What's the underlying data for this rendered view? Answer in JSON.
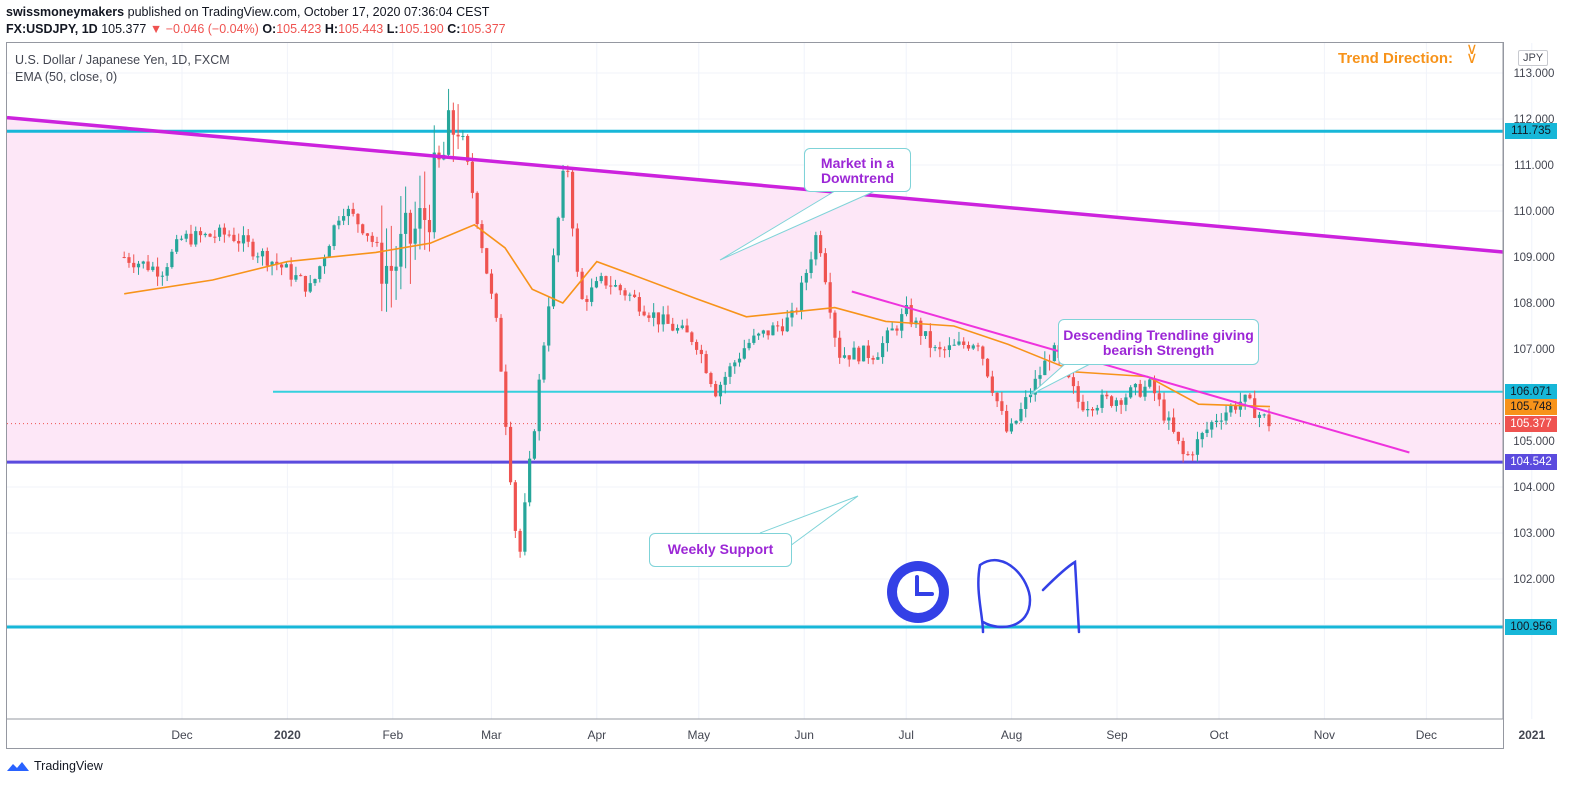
{
  "header": {
    "author": "swissmoneymakers",
    "published_text": "published on TradingView.com, October 17, 2020 07:36:04 CEST",
    "symbol": "FX:USDJPY, 1D",
    "last": "105.377",
    "change": "▼ −0.046 (−0.04%)",
    "o_label": "O:",
    "o_value": "105.423",
    "h_label": "H:",
    "h_value": "105.443",
    "l_label": "L:",
    "l_value": "105.190",
    "c_label": "C:",
    "c_value": "105.377"
  },
  "legend": {
    "title": "U.S. Dollar / Japanese Yen, 1D, FXCM",
    "indicator": "EMA (50, close, 0)"
  },
  "trend_direction": "Trend Direction:",
  "currency": "JPY",
  "callouts": {
    "downtrend": "Market in a Downtrend",
    "trendline": "Descending Trendline giving bearish Strength",
    "support": "Weekly Support"
  },
  "handwriting": "D1",
  "price_tags": {
    "top_line": "111.735",
    "mid_line": "106.071",
    "ema": "105.748",
    "last": "105.377",
    "support": "104.542",
    "bottom_line": "100.956"
  },
  "footer": {
    "brand": "TradingView"
  },
  "colors": {
    "up": "#26a69a",
    "down": "#ef5350",
    "ema": "#f7931a",
    "channel_fill": "#fde7f7",
    "cyan": "#17b7d8",
    "magenta": "#cc22dd",
    "support": "#5b4bde",
    "clock": "#3340e6"
  },
  "chart_data": {
    "type": "candlestick",
    "title": "U.S. Dollar / Japanese Yen, 1D, FXCM",
    "ylim": [
      100.3,
      113.3
    ],
    "y_ticks": [
      "101.000",
      "102.000",
      "103.000",
      "104.000",
      "105.000",
      "106.000",
      "107.000",
      "108.000",
      "109.000",
      "110.000",
      "111.000",
      "112.000",
      "113.000"
    ],
    "x_ticks": [
      "Dec",
      "2020",
      "Feb",
      "Mar",
      "Apr",
      "May",
      "Jun",
      "Jul",
      "Aug",
      "Sep",
      "Oct",
      "Nov",
      "Dec",
      "2021"
    ],
    "close_anchors": [
      {
        "t": "2019-11-14",
        "v": 109.0
      },
      {
        "t": "2019-11-25",
        "v": 108.7
      },
      {
        "t": "2019-12-01",
        "v": 109.4
      },
      {
        "t": "2019-12-15",
        "v": 109.5
      },
      {
        "t": "2019-12-30",
        "v": 108.8
      },
      {
        "t": "2020-01-08",
        "v": 108.3
      },
      {
        "t": "2020-01-17",
        "v": 110.1
      },
      {
        "t": "2020-01-24",
        "v": 109.6
      },
      {
        "t": "2020-01-31",
        "v": 108.7
      },
      {
        "t": "2020-02-10",
        "v": 109.8
      },
      {
        "t": "2020-02-20",
        "v": 112.1
      },
      {
        "t": "2020-02-25",
        "v": 110.2
      },
      {
        "t": "2020-03-03",
        "v": 107.3
      },
      {
        "t": "2020-03-09",
        "v": 102.3
      },
      {
        "t": "2020-03-12",
        "v": 104.3
      },
      {
        "t": "2020-03-17",
        "v": 107.5
      },
      {
        "t": "2020-03-23",
        "v": 111.3
      },
      {
        "t": "2020-03-27",
        "v": 108.0
      },
      {
        "t": "2020-04-03",
        "v": 108.5
      },
      {
        "t": "2020-04-10",
        "v": 108.2
      },
      {
        "t": "2020-04-20",
        "v": 107.6
      },
      {
        "t": "2020-04-30",
        "v": 107.2
      },
      {
        "t": "2020-05-06",
        "v": 106.1
      },
      {
        "t": "2020-05-15",
        "v": 107.1
      },
      {
        "t": "2020-05-29",
        "v": 107.7
      },
      {
        "t": "2020-06-05",
        "v": 109.6
      },
      {
        "t": "2020-06-11",
        "v": 106.9
      },
      {
        "t": "2020-06-22",
        "v": 106.9
      },
      {
        "t": "2020-07-01",
        "v": 107.8
      },
      {
        "t": "2020-07-10",
        "v": 106.9
      },
      {
        "t": "2020-07-22",
        "v": 107.2
      },
      {
        "t": "2020-07-31",
        "v": 105.1
      },
      {
        "t": "2020-08-13",
        "v": 107.0
      },
      {
        "t": "2020-08-21",
        "v": 105.8
      },
      {
        "t": "2020-08-31",
        "v": 105.9
      },
      {
        "t": "2020-09-11",
        "v": 106.2
      },
      {
        "t": "2020-09-21",
        "v": 104.6
      },
      {
        "t": "2020-09-30",
        "v": 105.5
      },
      {
        "t": "2020-10-08",
        "v": 105.9
      },
      {
        "t": "2020-10-16",
        "v": 105.377
      }
    ],
    "ema_50": [
      {
        "t": "2019-11-14",
        "v": 108.2
      },
      {
        "t": "2019-12-10",
        "v": 108.5
      },
      {
        "t": "2020-01-01",
        "v": 108.9
      },
      {
        "t": "2020-01-27",
        "v": 109.1
      },
      {
        "t": "2020-02-12",
        "v": 109.3
      },
      {
        "t": "2020-02-25",
        "v": 109.7
      },
      {
        "t": "2020-03-05",
        "v": 109.2
      },
      {
        "t": "2020-03-13",
        "v": 108.3
      },
      {
        "t": "2020-03-22",
        "v": 108.0
      },
      {
        "t": "2020-04-01",
        "v": 108.9
      },
      {
        "t": "2020-04-12",
        "v": 108.6
      },
      {
        "t": "2020-04-30",
        "v": 108.1
      },
      {
        "t": "2020-05-15",
        "v": 107.7
      },
      {
        "t": "2020-06-10",
        "v": 107.9
      },
      {
        "t": "2020-06-25",
        "v": 107.6
      },
      {
        "t": "2020-07-15",
        "v": 107.5
      },
      {
        "t": "2020-07-31",
        "v": 107.1
      },
      {
        "t": "2020-08-20",
        "v": 106.5
      },
      {
        "t": "2020-09-10",
        "v": 106.4
      },
      {
        "t": "2020-09-25",
        "v": 105.8
      },
      {
        "t": "2020-10-16",
        "v": 105.748
      }
    ],
    "levels": [
      {
        "name": "upper",
        "value": 111.735
      },
      {
        "name": "mid",
        "value": 106.071
      },
      {
        "name": "support",
        "value": 104.542
      },
      {
        "name": "lower",
        "value": 100.956
      }
    ],
    "channel_top_line": [
      {
        "t": "2019-11-14",
        "v": 111.8
      },
      {
        "t": "2021-01-24",
        "v": 108.9
      }
    ],
    "descending_trendline": [
      {
        "t": "2020-06-15",
        "v": 108.25
      },
      {
        "t": "2020-11-26",
        "v": 104.75
      }
    ]
  }
}
